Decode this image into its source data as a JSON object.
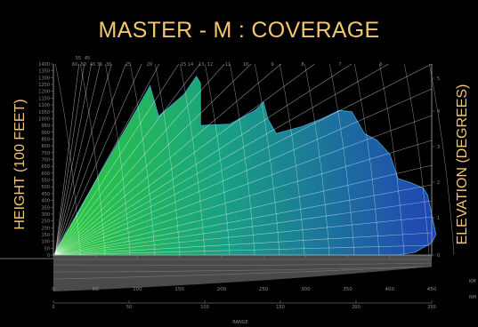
{
  "chart_data": {
    "type": "area",
    "title": "MASTER - M : COVERAGE",
    "ylabel": "HEIGHT (100 FEET)",
    "y2label": "ELEVATION (DEGREES)",
    "xlabel": "RANGE",
    "xlim": [
      0,
      450
    ],
    "ylim": [
      0,
      1400
    ],
    "x_ticks": [
      "0",
      "50",
      "100",
      "150",
      "200",
      "250",
      "300",
      "350",
      "400",
      "450"
    ],
    "y_ticks": [
      "0",
      "50",
      "100",
      "150",
      "200",
      "250",
      "300",
      "350",
      "400",
      "450",
      "500",
      "550",
      "600",
      "650",
      "700",
      "750",
      "800",
      "850",
      "900",
      "950",
      "1000",
      "1050",
      "1100",
      "1150",
      "1200",
      "1250",
      "1300",
      "1350",
      "1400"
    ],
    "elevation_ticks": [
      "0",
      "1",
      "2",
      "3",
      "4",
      "5"
    ],
    "km_ticks": [
      "0",
      "50",
      "100",
      "150",
      "200",
      "250"
    ],
    "km_label": "KM",
    "nm_label": "NM",
    "top_angle_labels": [
      "55",
      "45",
      "60",
      "50",
      "40",
      "35",
      "30",
      "25",
      "20",
      "15",
      "14",
      "13",
      "12",
      "11",
      "10",
      "9",
      "8",
      "7",
      "6"
    ],
    "coverage": {
      "x": [
        0,
        115,
        125,
        120,
        155,
        170,
        175,
        175,
        210,
        240,
        250,
        255,
        265,
        295,
        320,
        340,
        355,
        370,
        385,
        400,
        405,
        410,
        425,
        440,
        445,
        450,
        455,
        450,
        430,
        410,
        0
      ],
      "y": [
        0,
        1240,
        1020,
        990,
        1175,
        1310,
        1260,
        950,
        960,
        1060,
        1120,
        1000,
        890,
        940,
        1000,
        1060,
        1050,
        890,
        840,
        740,
        650,
        560,
        530,
        490,
        440,
        300,
        150,
        90,
        20,
        0,
        0
      ]
    },
    "colors": {
      "title": "#f2c770",
      "coverage_start": "#2ecb3a",
      "coverage_end": "#1f44b5"
    }
  }
}
